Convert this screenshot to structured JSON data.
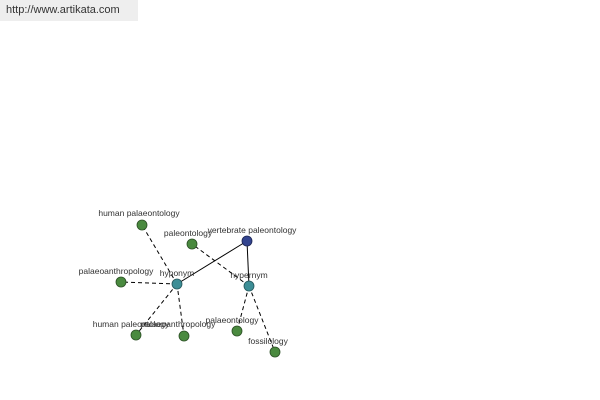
{
  "header": {
    "url": "http://www.artikata.com"
  },
  "nodes": [
    {
      "label": "vertebrate paleontology"
    },
    {
      "label": "hyponym"
    },
    {
      "label": "hypernym"
    },
    {
      "label": "human palaeontology"
    },
    {
      "label": "paleontology"
    },
    {
      "label": "palaeoanthropology"
    },
    {
      "label": "human paleontology"
    },
    {
      "label": "palaeoanthropology"
    },
    {
      "label": "palaeontology"
    },
    {
      "label": "fossilology"
    }
  ]
}
